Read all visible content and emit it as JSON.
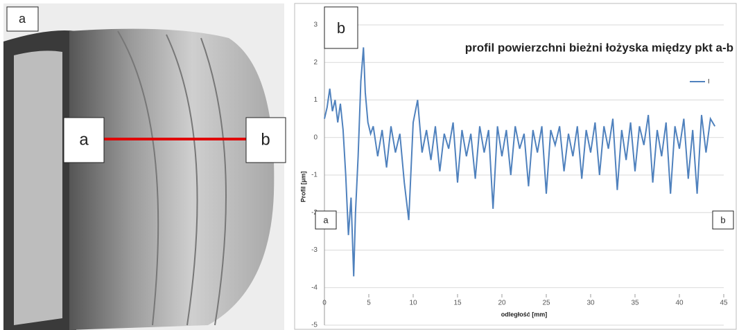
{
  "photo": {
    "panel_label": "a",
    "point_a": "a",
    "point_b": "b"
  },
  "chart_data": {
    "type": "line",
    "panel_label": "b",
    "title": "profil powierzchni bieżni łożyska między pkt a-b",
    "x_label": "odległość [mm]",
    "y_label": "Profil [µm]",
    "annotations": [
      "a",
      "b"
    ],
    "xlim": [
      0,
      45
    ],
    "xticks": [
      0,
      5,
      10,
      15,
      20,
      25,
      30,
      35,
      40,
      45
    ],
    "ylim": [
      -5,
      3
    ],
    "yticks": [
      -5,
      -4,
      -3,
      -2,
      -1,
      0,
      1,
      2,
      3
    ],
    "grid": true,
    "legend": "upper right",
    "x": [
      0,
      0.3,
      0.6,
      0.9,
      1.2,
      1.5,
      1.8,
      2.1,
      2.4,
      2.7,
      3.0,
      3.3,
      3.5,
      3.8,
      4.1,
      4.4,
      4.6,
      4.9,
      5.2,
      5.5,
      6,
      6.5,
      7,
      7.5,
      8,
      8.5,
      9,
      9.5,
      10,
      10.5,
      11,
      11.5,
      12,
      12.5,
      13,
      13.5,
      14,
      14.5,
      15,
      15.5,
      16,
      16.5,
      17,
      17.5,
      18,
      18.5,
      19,
      19.5,
      20,
      20.5,
      21,
      21.5,
      22,
      22.5,
      23,
      23.5,
      24,
      24.5,
      25,
      25.5,
      26,
      26.5,
      27,
      27.5,
      28,
      28.5,
      29,
      29.5,
      30,
      30.5,
      31,
      31.5,
      32,
      32.5,
      33,
      33.5,
      34,
      34.5,
      35,
      35.5,
      36,
      36.5,
      37,
      37.5,
      38,
      38.5,
      39,
      39.5,
      40,
      40.5,
      41,
      41.5,
      42,
      42.5,
      43,
      43.5,
      44
    ],
    "series": [
      {
        "name": "I",
        "color": "#4f81bd",
        "values": [
          0.5,
          0.8,
          1.3,
          0.7,
          1.0,
          0.4,
          0.9,
          0.2,
          -1.0,
          -2.6,
          -1.6,
          -3.7,
          -2.0,
          -0.5,
          1.5,
          2.4,
          1.2,
          0.4,
          0.1,
          0.3,
          -0.5,
          0.2,
          -0.8,
          0.3,
          -0.4,
          0.1,
          -1.2,
          -2.2,
          0.4,
          1.0,
          -0.4,
          0.2,
          -0.6,
          0.3,
          -0.9,
          0.1,
          -0.3,
          0.4,
          -1.2,
          0.2,
          -0.5,
          0.1,
          -1.1,
          0.3,
          -0.4,
          0.2,
          -1.9,
          0.3,
          -0.5,
          0.2,
          -1.0,
          0.3,
          -0.3,
          0.1,
          -1.3,
          0.2,
          -0.4,
          0.3,
          -1.5,
          0.2,
          -0.2,
          0.3,
          -0.9,
          0.1,
          -0.5,
          0.3,
          -1.1,
          0.2,
          -0.4,
          0.4,
          -1.0,
          0.3,
          -0.3,
          0.5,
          -1.4,
          0.2,
          -0.6,
          0.4,
          -0.9,
          0.3,
          -0.2,
          0.6,
          -1.2,
          0.2,
          -0.5,
          0.4,
          -1.5,
          0.3,
          -0.3,
          0.5,
          -1.1,
          0.2,
          -1.5,
          0.6,
          -0.4,
          0.5,
          0.3
        ]
      }
    ]
  }
}
